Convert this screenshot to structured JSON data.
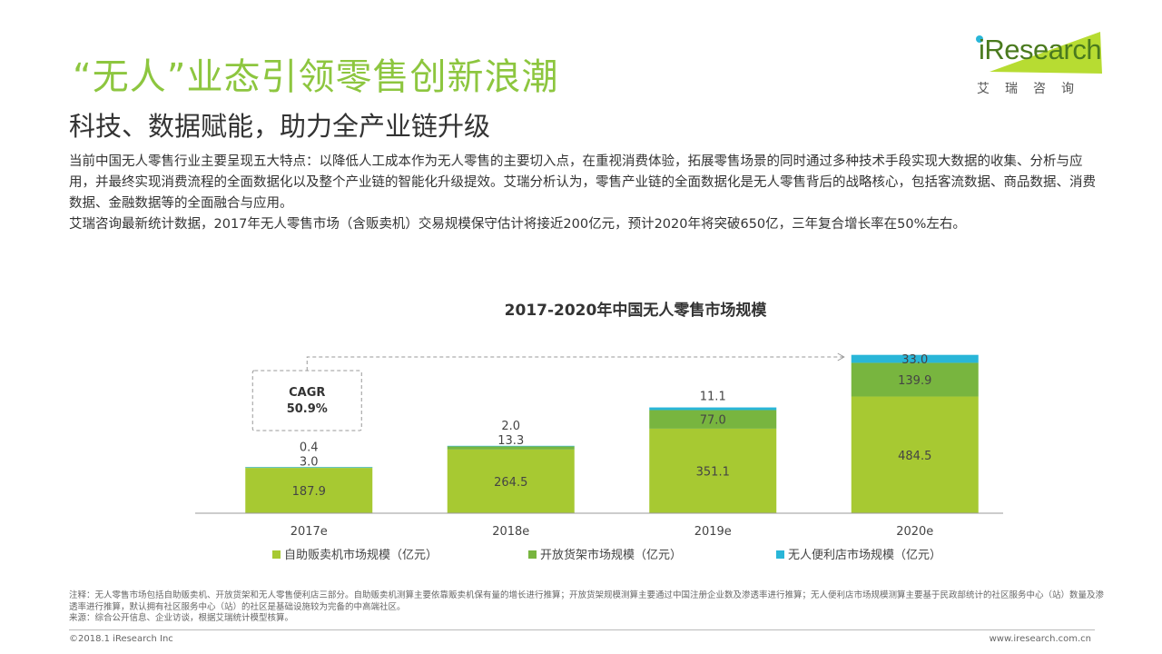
{
  "header": {
    "title": "“无人”业态引领零售创新浪潮",
    "subtitle": "科技、数据赋能，助力全产业链升级"
  },
  "logo": {
    "word": "iResearch",
    "cn": "艾瑞咨询"
  },
  "body": {
    "paragraph1": "当前中国无人零售行业主要呈现五大特点：以降低人工成本作为无人零售的主要切入点，在重视消费体验，拓展零售场景的同时通过多种技术手段实现大数据的收集、分析与应用，并最终实现消费流程的全面数据化以及整个产业链的智能化升级提效。艾瑞分析认为，零售产业链的全面数据化是无人零售背后的战略核心，包括客流数据、商品数据、消费数据、金融数据等的全面融合与应用。",
    "paragraph2": "艾瑞咨询最新统计数据，2017年无人零售市场（含贩卖机）交易规模保守估计将接近200亿元，预计2020年将突破650亿，三年复合增长率在50%左右。"
  },
  "chart_data": {
    "type": "bar",
    "stacked": true,
    "title": "2017-2020年中国无人零售市场规模",
    "categories": [
      "2017e",
      "2018e",
      "2019e",
      "2020e"
    ],
    "series": [
      {
        "name": "自助贩卖机市场规模（亿元）",
        "values": [
          187.9,
          264.5,
          351.1,
          484.5
        ],
        "color": "#a7c932"
      },
      {
        "name": "开放货架市场规模（亿元）",
        "values": [
          3.0,
          13.3,
          77.0,
          139.9
        ],
        "color": "#78b53f"
      },
      {
        "name": "无人便利店市场规模（亿元）",
        "values": [
          0.4,
          2.0,
          11.1,
          33.0
        ],
        "color": "#29b6d8"
      }
    ],
    "ylim": [
      0,
      660
    ],
    "grid": false,
    "legend": "bottom",
    "annotation": {
      "label": "CAGR",
      "value": "50.9%"
    }
  },
  "notes": {
    "line1": "注释：无人零售市场包括自助贩卖机、开放货架和无人零售便利店三部分。自助贩卖机测算主要依靠贩卖机保有量的增长进行推算；开放货架规模测算主要通过中国注册企业数及渗透率进行推算；无人便利店市场规模测算主要基于民政部统计的社区服务中心（站）数量及渗透率进行推算，默认拥有社区服务中心（站）的社区是基础设施较为完备的中高端社区。",
    "line2": "来源：综合公开信息、企业访谈，根据艾瑞统计模型核算。"
  },
  "footer": {
    "left": "©2018.1 iResearch Inc",
    "right": "www.iresearch.com.cn"
  }
}
